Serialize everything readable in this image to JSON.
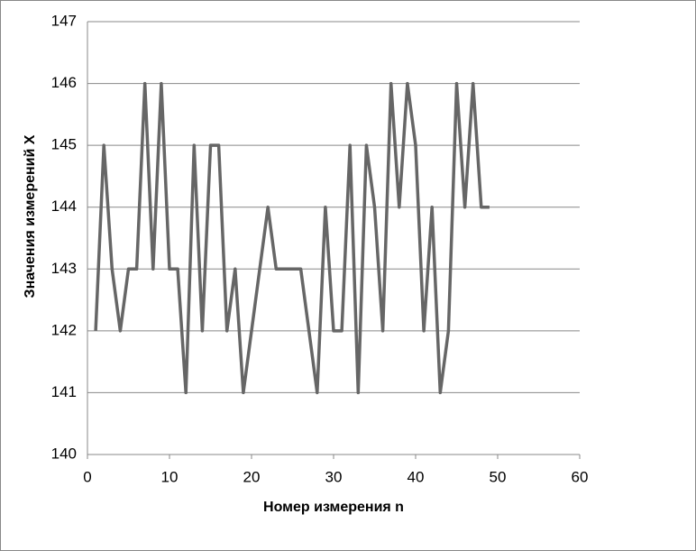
{
  "chart_data": {
    "type": "line",
    "x_label": "Номер измерения n",
    "y_label": "Значения измерений  X",
    "x": [
      1,
      2,
      3,
      4,
      5,
      6,
      7,
      8,
      9,
      10,
      11,
      12,
      13,
      14,
      15,
      16,
      17,
      18,
      19,
      20,
      21,
      22,
      23,
      24,
      25,
      26,
      27,
      28,
      29,
      30,
      31,
      32,
      33,
      34,
      35,
      36,
      37,
      38,
      39,
      40,
      41,
      42,
      43,
      44,
      45,
      46,
      47,
      48,
      49
    ],
    "series": [
      {
        "color": "#666666",
        "values": [
          142,
          145,
          143,
          142,
          143,
          143,
          146,
          143,
          146,
          143,
          143,
          141,
          145,
          142,
          145,
          145,
          142,
          143,
          141,
          142,
          143,
          144,
          143,
          143,
          143,
          143,
          142,
          141,
          144,
          142,
          142,
          145,
          141,
          145,
          144,
          142,
          146,
          144,
          146,
          145,
          142,
          144,
          141,
          142,
          146,
          144,
          146,
          144,
          144
        ]
      }
    ],
    "xlim": [
      0,
      60
    ],
    "xticks": [
      0,
      10,
      20,
      30,
      40,
      50,
      60
    ],
    "ylim": [
      140,
      147
    ],
    "yticks": [
      140,
      141,
      142,
      143,
      144,
      145,
      146,
      147
    ],
    "grid": true
  }
}
